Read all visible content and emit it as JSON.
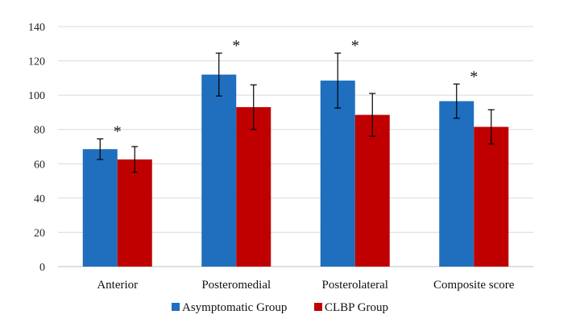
{
  "chart_data": {
    "type": "bar",
    "title": "",
    "xlabel": "",
    "ylabel": "",
    "ylim": [
      0,
      140
    ],
    "yticks": [
      0,
      20,
      40,
      60,
      80,
      100,
      120,
      140
    ],
    "grid": true,
    "legend_position": "bottom",
    "categories": [
      "Anterior",
      "Posteromedial",
      "Posterolateral",
      "Composite score"
    ],
    "series": [
      {
        "name": "Asymptomatic Group",
        "color": "#1f6fbe",
        "values": [
          68.5,
          112,
          108.5,
          96.5
        ],
        "errors": [
          6,
          12.5,
          16,
          10
        ]
      },
      {
        "name": "CLBP Group",
        "color": "#c00000",
        "values": [
          62.5,
          93,
          88.5,
          81.5
        ],
        "errors": [
          7.5,
          13,
          12.5,
          10
        ]
      }
    ],
    "annotations": [
      "*",
      "*",
      "*",
      "*"
    ]
  }
}
